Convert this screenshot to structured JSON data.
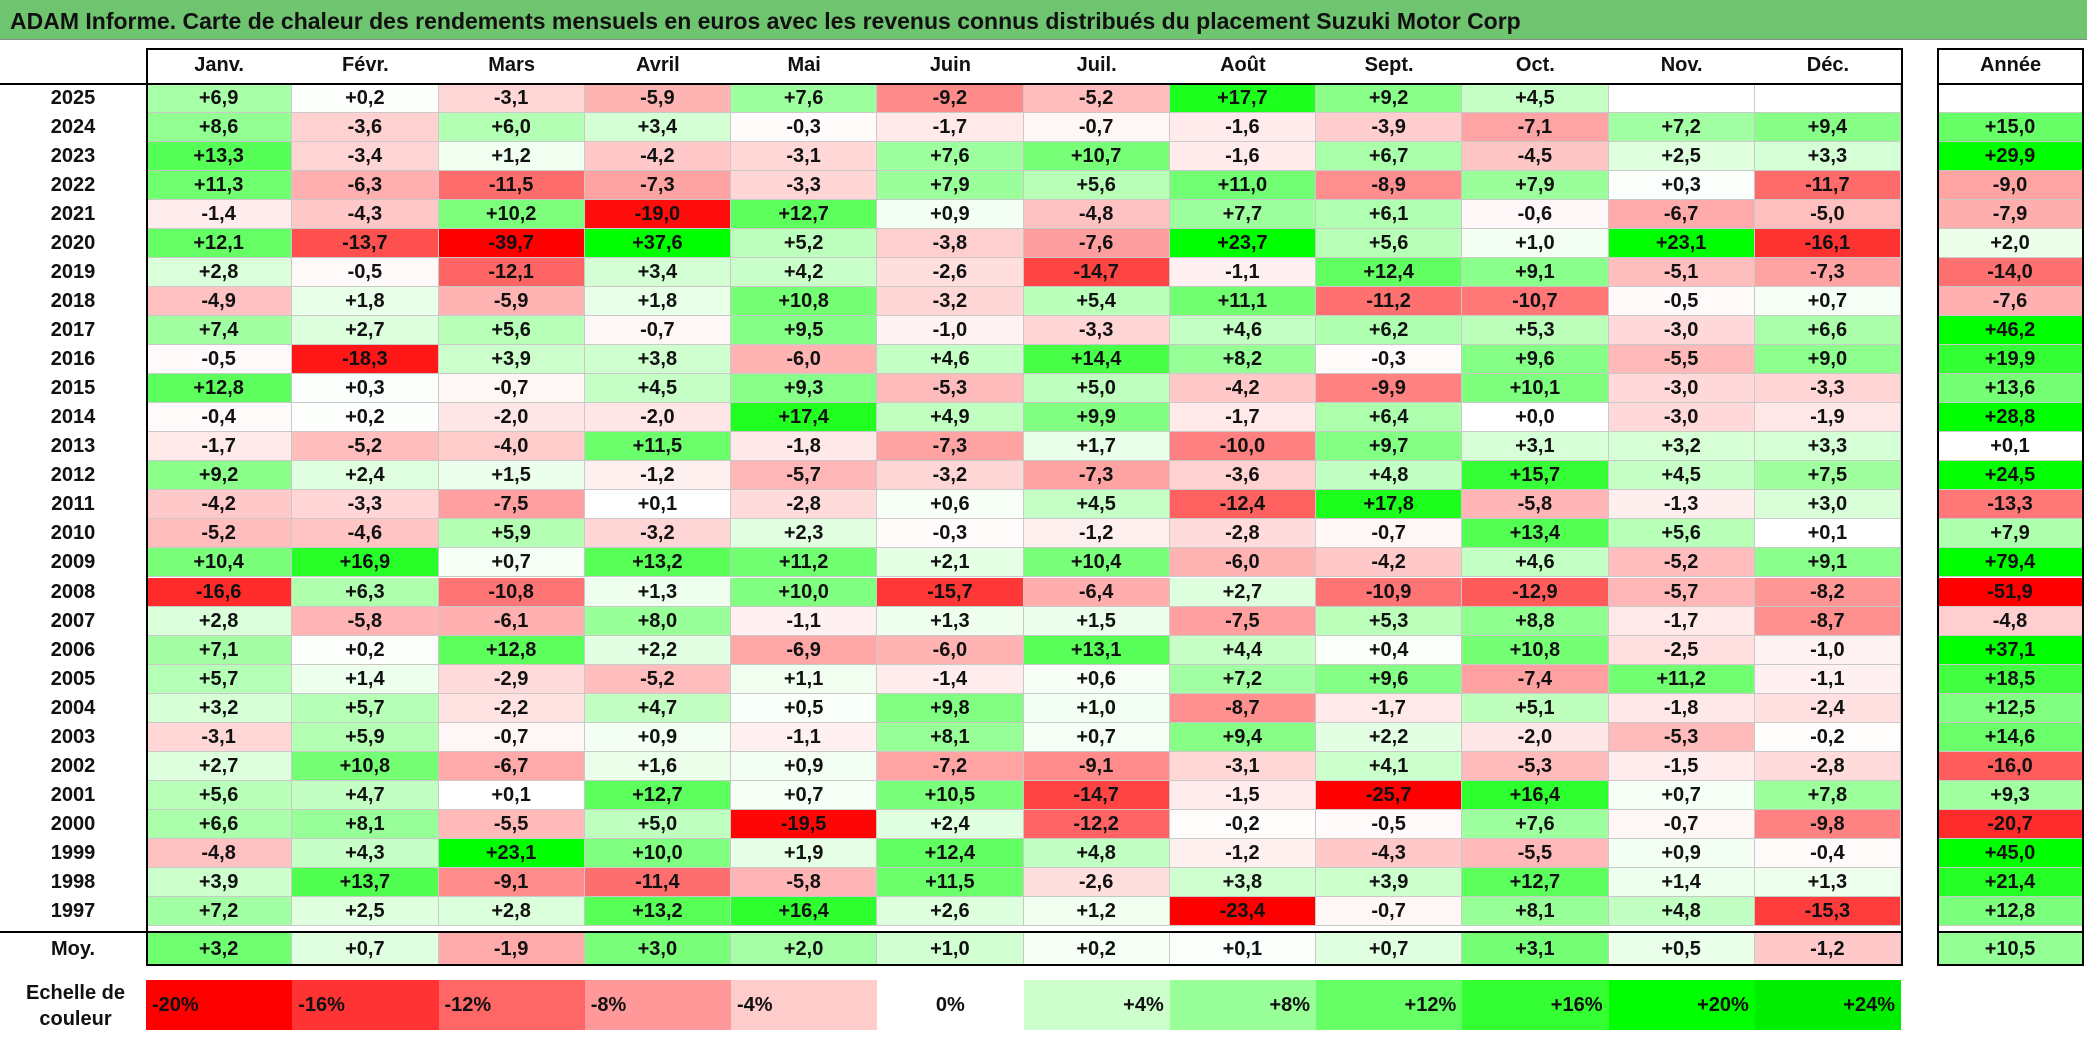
{
  "title": "ADAM Informe. Carte de chaleur des rendements mensuels en euros avec les revenus connus distribués du placement Suzuki Motor Corp",
  "chart_data": {
    "type": "heatmap",
    "title": "ADAM Informe. Carte de chaleur des rendements mensuels en euros avec les revenus connus distribués du placement Suzuki Motor Corp",
    "columns": [
      "Janv.",
      "Févr.",
      "Mars",
      "Avril",
      "Mai",
      "Juin",
      "Juil.",
      "Août",
      "Sept.",
      "Oct.",
      "Nov.",
      "Déc."
    ],
    "annual_header": "Année",
    "rows": [
      {
        "year": "2025",
        "values": [
          "+6,9",
          "+0,2",
          "-3,1",
          "-5,9",
          "+7,6",
          "-9,2",
          "-5,2",
          "+17,7",
          "+9,2",
          "+4,5",
          "",
          ""
        ],
        "annual": ""
      },
      {
        "year": "2024",
        "values": [
          "+8,6",
          "-3,6",
          "+6,0",
          "+3,4",
          "-0,3",
          "-1,7",
          "-0,7",
          "-1,6",
          "-3,9",
          "-7,1",
          "+7,2",
          "+9,4"
        ],
        "annual": "+15,0"
      },
      {
        "year": "2023",
        "values": [
          "+13,3",
          "-3,4",
          "+1,2",
          "-4,2",
          "-3,1",
          "+7,6",
          "+10,7",
          "-1,6",
          "+6,7",
          "-4,5",
          "+2,5",
          "+3,3"
        ],
        "annual": "+29,9"
      },
      {
        "year": "2022",
        "values": [
          "+11,3",
          "-6,3",
          "-11,5",
          "-7,3",
          "-3,3",
          "+7,9",
          "+5,6",
          "+11,0",
          "-8,9",
          "+7,9",
          "+0,3",
          "-11,7"
        ],
        "annual": "-9,0"
      },
      {
        "year": "2021",
        "values": [
          "-1,4",
          "-4,3",
          "+10,2",
          "-19,0",
          "+12,7",
          "+0,9",
          "-4,8",
          "+7,7",
          "+6,1",
          "-0,6",
          "-6,7",
          "-5,0"
        ],
        "annual": "-7,9"
      },
      {
        "year": "2020",
        "values": [
          "+12,1",
          "-13,7",
          "-39,7",
          "+37,6",
          "+5,2",
          "-3,8",
          "-7,6",
          "+23,7",
          "+5,6",
          "+1,0",
          "+23,1",
          "-16,1"
        ],
        "annual": "+2,0"
      },
      {
        "year": "2019",
        "values": [
          "+2,8",
          "-0,5",
          "-12,1",
          "+3,4",
          "+4,2",
          "-2,6",
          "-14,7",
          "-1,1",
          "+12,4",
          "+9,1",
          "-5,1",
          "-7,3"
        ],
        "annual": "-14,0"
      },
      {
        "year": "2018",
        "values": [
          "-4,9",
          "+1,8",
          "-5,9",
          "+1,8",
          "+10,8",
          "-3,2",
          "+5,4",
          "+11,1",
          "-11,2",
          "-10,7",
          "-0,5",
          "+0,7"
        ],
        "annual": "-7,6"
      },
      {
        "year": "2017",
        "values": [
          "+7,4",
          "+2,7",
          "+5,6",
          "-0,7",
          "+9,5",
          "-1,0",
          "-3,3",
          "+4,6",
          "+6,2",
          "+5,3",
          "-3,0",
          "+6,6"
        ],
        "annual": "+46,2"
      },
      {
        "year": "2016",
        "values": [
          "-0,5",
          "-18,3",
          "+3,9",
          "+3,8",
          "-6,0",
          "+4,6",
          "+14,4",
          "+8,2",
          "-0,3",
          "+9,6",
          "-5,5",
          "+9,0"
        ],
        "annual": "+19,9"
      },
      {
        "year": "2015",
        "values": [
          "+12,8",
          "+0,3",
          "-0,7",
          "+4,5",
          "+9,3",
          "-5,3",
          "+5,0",
          "-4,2",
          "-9,9",
          "+10,1",
          "-3,0",
          "-3,3"
        ],
        "annual": "+13,6"
      },
      {
        "year": "2014",
        "values": [
          "-0,4",
          "+0,2",
          "-2,0",
          "-2,0",
          "+17,4",
          "+4,9",
          "+9,9",
          "-1,7",
          "+6,4",
          "+0,0",
          "-3,0",
          "-1,9"
        ],
        "annual": "+28,8"
      },
      {
        "year": "2013",
        "values": [
          "-1,7",
          "-5,2",
          "-4,0",
          "+11,5",
          "-1,8",
          "-7,3",
          "+1,7",
          "-10,0",
          "+9,7",
          "+3,1",
          "+3,2",
          "+3,3"
        ],
        "annual": "+0,1"
      },
      {
        "year": "2012",
        "values": [
          "+9,2",
          "+2,4",
          "+1,5",
          "-1,2",
          "-5,7",
          "-3,2",
          "-7,3",
          "-3,6",
          "+4,8",
          "+15,7",
          "+4,5",
          "+7,5"
        ],
        "annual": "+24,5"
      },
      {
        "year": "2011",
        "values": [
          "-4,2",
          "-3,3",
          "-7,5",
          "+0,1",
          "-2,8",
          "+0,6",
          "+4,5",
          "-12,4",
          "+17,8",
          "-5,8",
          "-1,3",
          "+3,0"
        ],
        "annual": "-13,3"
      },
      {
        "year": "2010",
        "values": [
          "-5,2",
          "-4,6",
          "+5,9",
          "-3,2",
          "+2,3",
          "-0,3",
          "-1,2",
          "-2,8",
          "-0,7",
          "+13,4",
          "+5,6",
          "+0,1"
        ],
        "annual": "+7,9"
      },
      {
        "year": "2009",
        "values": [
          "+10,4",
          "+16,9",
          "+0,7",
          "+13,2",
          "+11,2",
          "+2,1",
          "+10,4",
          "-6,0",
          "-4,2",
          "+4,6",
          "-5,2",
          "+9,1"
        ],
        "annual": "+79,4"
      },
      {
        "year": "2008",
        "values": [
          "-16,6",
          "+6,3",
          "-10,8",
          "+1,3",
          "+10,0",
          "-15,7",
          "-6,4",
          "+2,7",
          "-10,9",
          "-12,9",
          "-5,7",
          "-8,2"
        ],
        "annual": "-51,9"
      },
      {
        "year": "2007",
        "values": [
          "+2,8",
          "-5,8",
          "-6,1",
          "+8,0",
          "-1,1",
          "+1,3",
          "+1,5",
          "-7,5",
          "+5,3",
          "+8,8",
          "-1,7",
          "-8,7"
        ],
        "annual": "-4,8"
      },
      {
        "year": "2006",
        "values": [
          "+7,1",
          "+0,2",
          "+12,8",
          "+2,2",
          "-6,9",
          "-6,0",
          "+13,1",
          "+4,4",
          "+0,4",
          "+10,8",
          "-2,5",
          "-1,0"
        ],
        "annual": "+37,1"
      },
      {
        "year": "2005",
        "values": [
          "+5,7",
          "+1,4",
          "-2,9",
          "-5,2",
          "+1,1",
          "-1,4",
          "+0,6",
          "+7,2",
          "+9,6",
          "-7,4",
          "+11,2",
          "-1,1"
        ],
        "annual": "+18,5"
      },
      {
        "year": "2004",
        "values": [
          "+3,2",
          "+5,7",
          "-2,2",
          "+4,7",
          "+0,5",
          "+9,8",
          "+1,0",
          "-8,7",
          "-1,7",
          "+5,1",
          "-1,8",
          "-2,4"
        ],
        "annual": "+12,5"
      },
      {
        "year": "2003",
        "values": [
          "-3,1",
          "+5,9",
          "-0,7",
          "+0,9",
          "-1,1",
          "+8,1",
          "+0,7",
          "+9,4",
          "+2,2",
          "-2,0",
          "-5,3",
          "-0,2"
        ],
        "annual": "+14,6"
      },
      {
        "year": "2002",
        "values": [
          "+2,7",
          "+10,8",
          "-6,7",
          "+1,6",
          "+0,9",
          "-7,2",
          "-9,1",
          "-3,1",
          "+4,1",
          "-5,3",
          "-1,5",
          "-2,8"
        ],
        "annual": "-16,0"
      },
      {
        "year": "2001",
        "values": [
          "+5,6",
          "+4,7",
          "+0,1",
          "+12,7",
          "+0,7",
          "+10,5",
          "-14,7",
          "-1,5",
          "-25,7",
          "+16,4",
          "+0,7",
          "+7,8"
        ],
        "annual": "+9,3"
      },
      {
        "year": "2000",
        "values": [
          "+6,6",
          "+8,1",
          "-5,5",
          "+5,0",
          "-19,5",
          "+2,4",
          "-12,2",
          "-0,2",
          "-0,5",
          "+7,6",
          "-0,7",
          "-9,8"
        ],
        "annual": "-20,7"
      },
      {
        "year": "1999",
        "values": [
          "-4,8",
          "+4,3",
          "+23,1",
          "+10,0",
          "+1,9",
          "+12,4",
          "+4,8",
          "-1,2",
          "-4,3",
          "-5,5",
          "+0,9",
          "-0,4"
        ],
        "annual": "+45,0"
      },
      {
        "year": "1998",
        "values": [
          "+3,9",
          "+13,7",
          "-9,1",
          "-11,4",
          "-5,8",
          "+11,5",
          "-2,6",
          "+3,8",
          "+3,9",
          "+12,7",
          "+1,4",
          "+1,3"
        ],
        "annual": "+21,4"
      },
      {
        "year": "1997",
        "values": [
          "+7,2",
          "+2,5",
          "+2,8",
          "+13,2",
          "+16,4",
          "+2,6",
          "+1,2",
          "-23,4",
          "-0,7",
          "+8,1",
          "+4,8",
          "-15,3"
        ],
        "annual": "+12,8"
      }
    ],
    "average": {
      "label": "Moy.",
      "values": [
        "+3,2",
        "+0,7",
        "-1,9",
        "+3,0",
        "+2,0",
        "+1,0",
        "+0,2",
        "+0,1",
        "+0,7",
        "+3,1",
        "+0,5",
        "-1,2"
      ],
      "annual": "+10,5"
    },
    "color_scale": {
      "label": "Echelle de couleur",
      "steps": [
        {
          "label": "-20%",
          "color": "#ff0000"
        },
        {
          "label": "-16%",
          "color": "#ff3333"
        },
        {
          "label": "-12%",
          "color": "#ff6666"
        },
        {
          "label": "-8%",
          "color": "#ff9999"
        },
        {
          "label": "-4%",
          "color": "#ffcccc"
        },
        {
          "label": "0%",
          "color": "#ffffff"
        },
        {
          "label": "+4%",
          "color": "#ccffcc"
        },
        {
          "label": "+8%",
          "color": "#99ff99"
        },
        {
          "label": "+12%",
          "color": "#66ff66"
        },
        {
          "label": "+16%",
          "color": "#33ff33"
        },
        {
          "label": "+20%",
          "color": "#00ff00"
        },
        {
          "label": "+24%",
          "color": "#00ee00"
        }
      ],
      "monthly_saturation_pct": 20,
      "annual_saturation_pct": 25
    },
    "colors": {
      "title_bar": "#6fc46f",
      "negative": "#ff0000",
      "positive": "#00ff00"
    }
  }
}
